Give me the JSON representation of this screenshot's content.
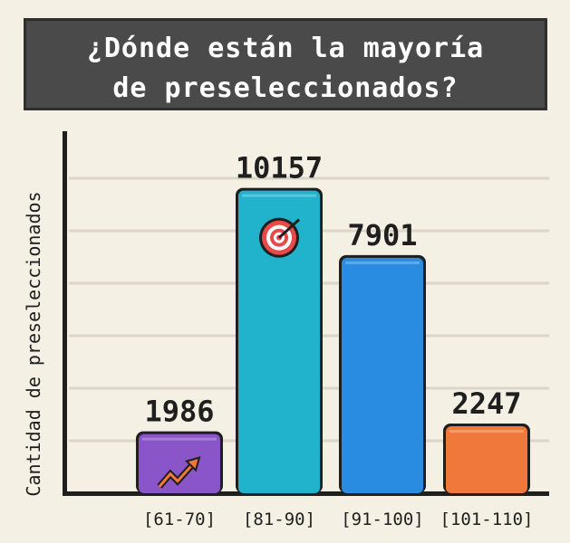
{
  "chart_data": {
    "type": "bar",
    "title": "¿Dónde están la mayoría de preseleccionados?",
    "title_lines": [
      "¿Dónde están la mayoría",
      "de preseleccionados?"
    ],
    "ylabel": "Cantidad de preseleccionados",
    "xlabel": "",
    "categories": [
      "[61-70]",
      "[81-90]",
      "[91-100]",
      "[101-110]"
    ],
    "values": [
      1986,
      10157,
      7901,
      2247
    ],
    "value_labels": [
      "1986",
      "10157",
      "7901",
      "2247"
    ],
    "bar_colors": [
      "#8a55c9",
      "#22b3cc",
      "#2a8ce0",
      "#f0783a"
    ],
    "bar_icons": [
      "trend-up-arrow-icon",
      "target-icon",
      "",
      ""
    ],
    "ylim": [
      0,
      12000
    ],
    "gridlines": 6,
    "grid": true,
    "legend": "none",
    "background": "#f5f0e4",
    "title_background": "#4a4a4a"
  }
}
